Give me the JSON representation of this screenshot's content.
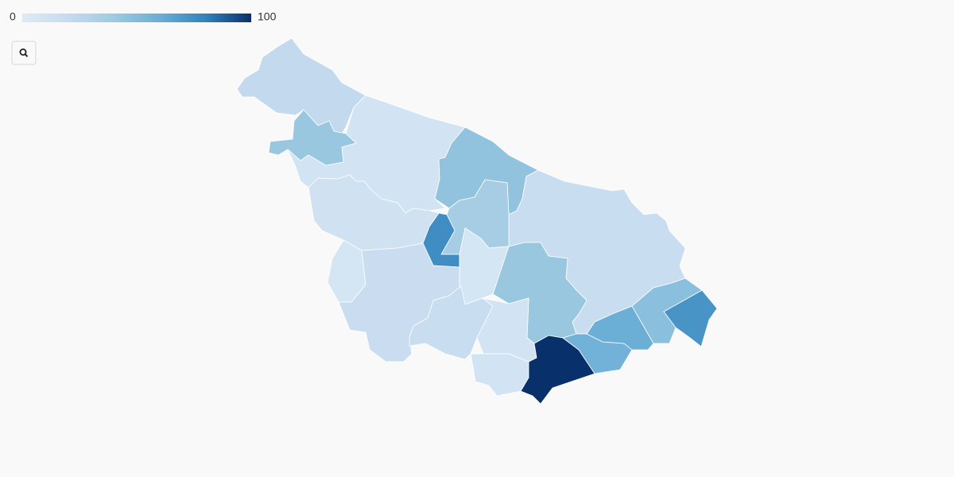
{
  "chart_data": {
    "type": "choropleth",
    "zlim": [
      0,
      100
    ],
    "zticks": [
      0,
      100
    ],
    "colorscale": [
      "#deebf7",
      "#c6dbef",
      "#9ecae1",
      "#6baed6",
      "#3182bd",
      "#08306b"
    ],
    "values": [
      22,
      42,
      10,
      45,
      18,
      36,
      75,
      12,
      8,
      17,
      8,
      42,
      18,
      10,
      10,
      100,
      57,
      60,
      48,
      72
    ]
  }
}
